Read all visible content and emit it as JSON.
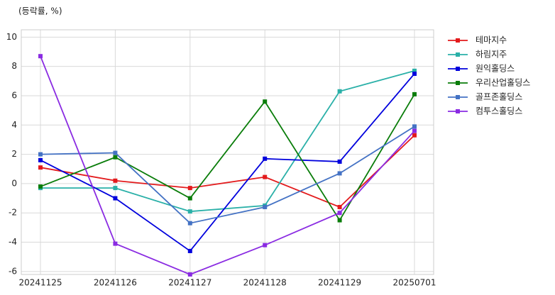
{
  "chart_data": {
    "type": "line",
    "subtitle": "(등락률, %)",
    "categories": [
      "20241125",
      "20241126",
      "20241127",
      "20241128",
      "20241129",
      "20250701"
    ],
    "series": [
      {
        "name": "테마지수",
        "color": "#e31a1c",
        "values": [
          1.1,
          0.2,
          -0.3,
          0.45,
          -1.6,
          3.3
        ]
      },
      {
        "name": "하림지주",
        "color": "#2ab0a8",
        "values": [
          -0.3,
          -0.3,
          -1.9,
          -1.5,
          6.3,
          7.7
        ]
      },
      {
        "name": "원익홀딩스",
        "color": "#0000dd",
        "values": [
          1.6,
          -1.0,
          -4.6,
          1.7,
          1.5,
          7.5
        ]
      },
      {
        "name": "우리산업홀딩스",
        "color": "#0a7d0a",
        "values": [
          -0.2,
          1.8,
          -1.0,
          5.6,
          -2.5,
          6.1
        ]
      },
      {
        "name": "골프존홀딩스",
        "color": "#4472c4",
        "values": [
          2.0,
          2.1,
          -2.7,
          -1.6,
          0.7,
          3.9
        ]
      },
      {
        "name": "컴투스홀딩스",
        "color": "#8a2be2",
        "values": [
          8.7,
          -4.1,
          -6.2,
          -4.2,
          -2.0,
          3.6
        ]
      }
    ],
    "ylim": [
      -6.2,
      10.5
    ],
    "yticks": [
      -6,
      -4,
      -2,
      0,
      2,
      4,
      6,
      8,
      10
    ],
    "grid": true,
    "legend": "outside-right"
  }
}
